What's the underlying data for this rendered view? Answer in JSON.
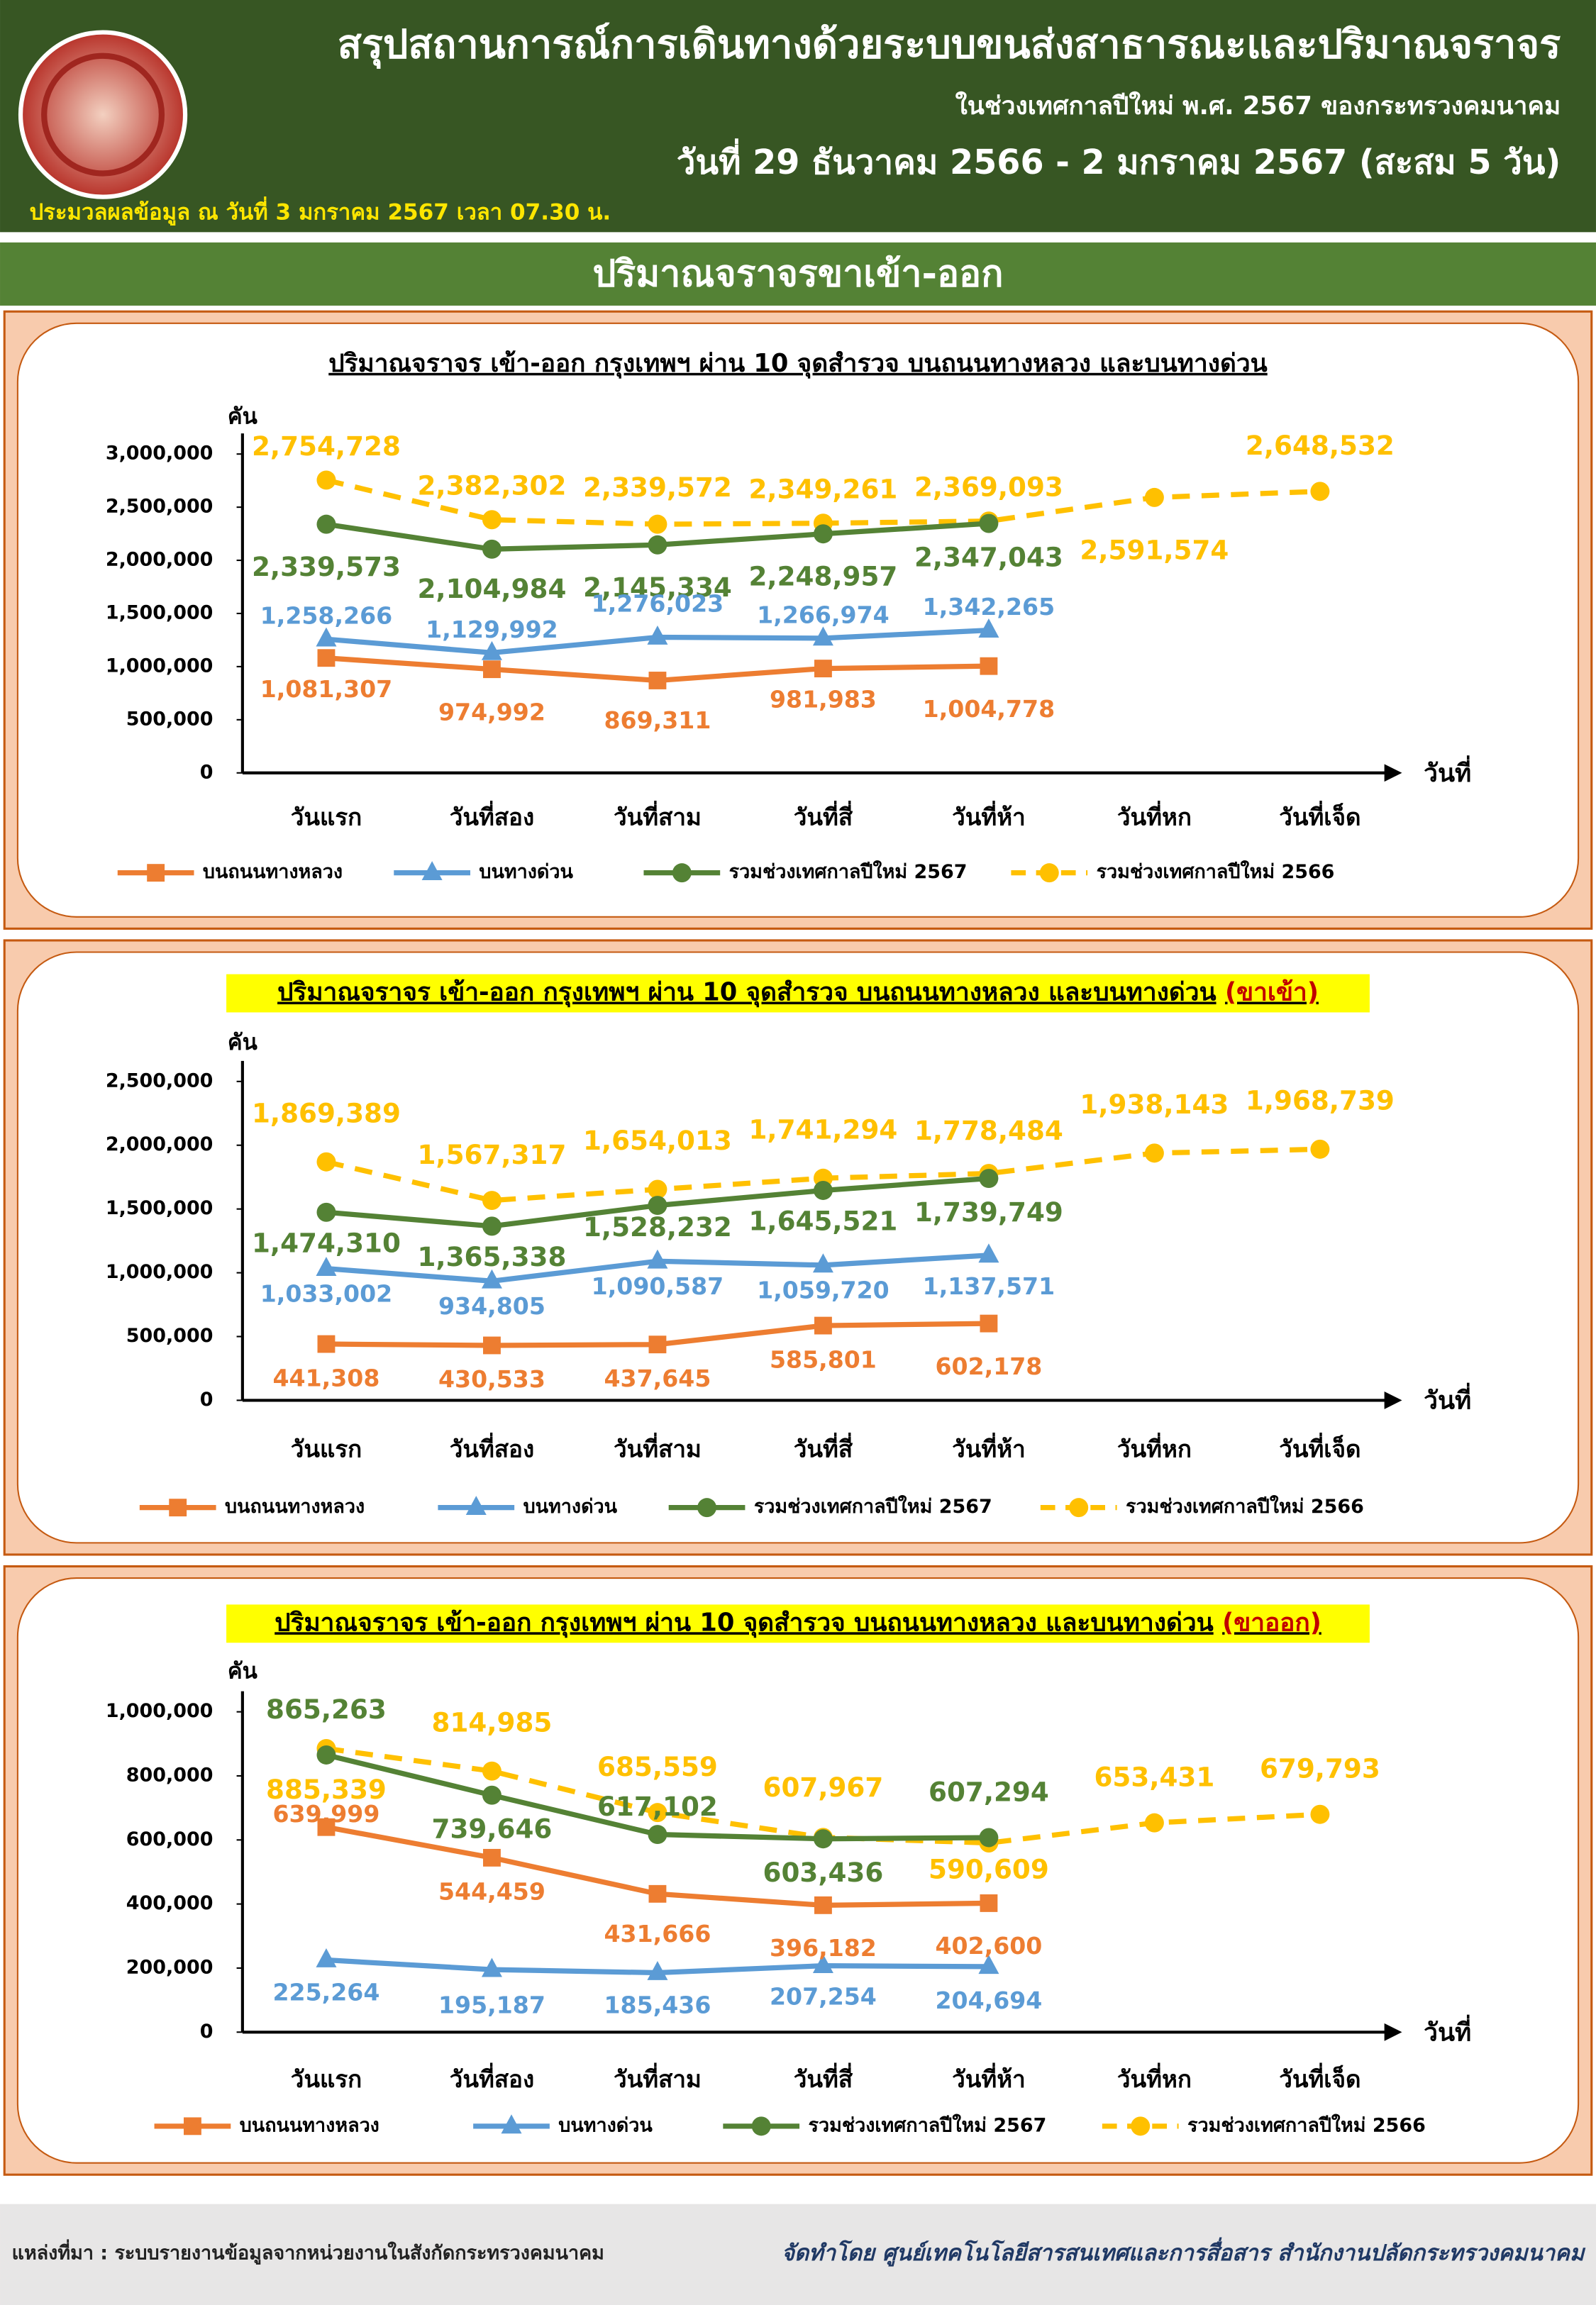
{
  "header": {
    "title": "สรุปสถานการณ์การเดินทางด้วยระบบขนส่งสาธารณะและปริมาณจราจร",
    "subtitle": "ในช่วงเทศกาลปีใหม่ พ.ศ. 2567 ของกระทรวงคมนาคม",
    "date_range": "วันที่ 29 ธันวาคม 2566 - 2 มกราคม 2567 (สะสม 5 วัน)",
    "processed": "ประมวลผลข้อมูล ณ วันที่ 3 มกราคม 2567 เวลา 07.30 น."
  },
  "section_title": "ปริมาณจราจรขาเข้า-ออก",
  "footer": {
    "source": "แหล่งที่มา : ระบบรายงานข้อมูลจากหน่วยงานในสังกัดกระทรวงคมนาคม",
    "credit": "จัดทำโดย ศูนย์เทคโนโลยีสารสนเทศและการสื่อสาร สำนักงานปลัดกระทรวงคมนาคม"
  },
  "chart_data": [
    {
      "type": "line",
      "title": "ปริมาณจราจร เข้า-ออก กรุงเทพฯ ผ่าน 10 จุดสำรวจ บนถนนทางหลวง และบนทางด่วน",
      "y_label": "คัน",
      "x_label": "วันที่",
      "categories": [
        "วันแรก",
        "วันที่สอง",
        "วันที่สาม",
        "วันที่สี่",
        "วันที่ห้า",
        "วันที่หก",
        "วันที่เจ็ด"
      ],
      "ylim": [
        0,
        3000000
      ],
      "yticks": [
        0,
        {
          "value": 500000,
          "label": "500,000"
        },
        {
          "value": 1000000,
          "label": "1,000,000"
        },
        {
          "value": 1500000,
          "label": "1,500,000"
        },
        {
          "value": 2000000,
          "label": "2,000,000"
        },
        {
          "value": 2500000,
          "label": "2,500,000"
        },
        {
          "value": 3000000,
          "label": "3,000,000"
        }
      ],
      "series": [
        {
          "name": "บนถนนทางหลวง",
          "color": "#ED7D31",
          "marker": "square",
          "dashed": false,
          "values": [
            1081307,
            974992,
            869311,
            981983,
            1004778,
            null,
            null
          ],
          "value_labels": [
            "1,081,307",
            "974,992",
            "869,311",
            "981,983",
            "1,004,778",
            null,
            null
          ]
        },
        {
          "name": "บนทางด่วน",
          "color": "#5B9BD5",
          "marker": "triangle",
          "dashed": false,
          "values": [
            1258266,
            1129992,
            1276023,
            1266974,
            1342265,
            null,
            null
          ],
          "value_labels": [
            "1,258,266",
            "1,129,992",
            "1,276,023",
            "1,266,974",
            "1,342,265",
            null,
            null
          ]
        },
        {
          "name": "รวมช่วงเทศกาลปีใหม่ 2567",
          "color": "#548235",
          "marker": "circle",
          "dashed": false,
          "values": [
            2339573,
            2104984,
            2145334,
            2248957,
            2347043,
            null,
            null
          ],
          "value_labels": [
            "2,339,573",
            "2,104,984",
            "2,145,334",
            "2,248,957",
            "2,347,043",
            null,
            null
          ]
        },
        {
          "name": "รวมช่วงเทศกาลปีใหม่ 2566",
          "color": "#FFC000",
          "marker": "circle",
          "dashed": true,
          "values": [
            2754728,
            2382302,
            2339572,
            2349261,
            2369093,
            2591574,
            2648532
          ],
          "value_labels": [
            "2,754,728",
            "2,382,302",
            "2,339,572",
            "2,349,261",
            "2,369,093",
            "2,591,574",
            "2,648,532"
          ]
        }
      ]
    },
    {
      "type": "line",
      "title": "ปริมาณจราจร เข้า-ออก กรุงเทพฯ ผ่าน 10 จุดสำรวจ บนถนนทางหลวง และบนทางด่วน",
      "title_suffix": "(ขาเข้า)",
      "y_label": "คัน",
      "x_label": "วันที่",
      "categories": [
        "วันแรก",
        "วันที่สอง",
        "วันที่สาม",
        "วันที่สี่",
        "วันที่ห้า",
        "วันที่หก",
        "วันที่เจ็ด"
      ],
      "ylim": [
        0,
        2500000
      ],
      "yticks": [
        0,
        {
          "value": 500000,
          "label": "500,000"
        },
        {
          "value": 1000000,
          "label": "1,000,000"
        },
        {
          "value": 1500000,
          "label": "1,500,000"
        },
        {
          "value": 2000000,
          "label": "2,000,000"
        },
        {
          "value": 2500000,
          "label": "2,500,000"
        }
      ],
      "series": [
        {
          "name": "บนถนนทางหลวง",
          "color": "#ED7D31",
          "marker": "square",
          "dashed": false,
          "values": [
            441308,
            430533,
            437645,
            585801,
            602178,
            null,
            null
          ],
          "value_labels": [
            "441,308",
            "430,533",
            "437,645",
            "585,801",
            "602,178",
            null,
            null
          ]
        },
        {
          "name": "บนทางด่วน",
          "color": "#5B9BD5",
          "marker": "triangle",
          "dashed": false,
          "values": [
            1033002,
            934805,
            1090587,
            1059720,
            1137571,
            null,
            null
          ],
          "value_labels": [
            "1,033,002",
            "934,805",
            "1,090,587",
            "1,059,720",
            "1,137,571",
            null,
            null
          ]
        },
        {
          "name": "รวมช่วงเทศกาลปีใหม่ 2567",
          "color": "#548235",
          "marker": "circle",
          "dashed": false,
          "values": [
            1474310,
            1365338,
            1528232,
            1645521,
            1739749,
            null,
            null
          ],
          "value_labels": [
            "1,474,310",
            "1,365,338",
            "1,528,232",
            "1,645,521",
            "1,739,749",
            null,
            null
          ]
        },
        {
          "name": "รวมช่วงเทศกาลปีใหม่ 2566",
          "color": "#FFC000",
          "marker": "circle",
          "dashed": true,
          "values": [
            1869389,
            1567317,
            1654013,
            1741294,
            1778484,
            1938143,
            1968739
          ],
          "value_labels": [
            "1,869,389",
            "1,567,317",
            "1,654,013",
            "1,741,294",
            "1,778,484",
            "1,938,143",
            "1,968,739"
          ]
        }
      ]
    },
    {
      "type": "line",
      "title": "ปริมาณจราจร เข้า-ออก กรุงเทพฯ ผ่าน 10 จุดสำรวจ บนถนนทางหลวง และบนทางด่วน",
      "title_suffix": "(ขาออก)",
      "y_label": "คัน",
      "x_label": "วันที่",
      "categories": [
        "วันแรก",
        "วันที่สอง",
        "วันที่สาม",
        "วันที่สี่",
        "วันที่ห้า",
        "วันที่หก",
        "วันที่เจ็ด"
      ],
      "ylim": [
        0,
        1000000
      ],
      "yticks": [
        0,
        {
          "value": 200000,
          "label": "200,000"
        },
        {
          "value": 400000,
          "label": "400,000"
        },
        {
          "value": 600000,
          "label": "600,000"
        },
        {
          "value": 800000,
          "label": "800,000"
        },
        {
          "value": 1000000,
          "label": "1,000,000"
        }
      ],
      "series": [
        {
          "name": "บนถนนทางหลวง",
          "color": "#ED7D31",
          "marker": "square",
          "dashed": false,
          "values": [
            639999,
            544459,
            431666,
            396182,
            402600,
            null,
            null
          ],
          "value_labels": [
            "639,999",
            "544,459",
            "431,666",
            "396,182",
            "402,600",
            null,
            null
          ]
        },
        {
          "name": "บนทางด่วน",
          "color": "#5B9BD5",
          "marker": "triangle",
          "dashed": false,
          "values": [
            225264,
            195187,
            185436,
            207254,
            204694,
            null,
            null
          ],
          "value_labels": [
            "225,264",
            "195,187",
            "185,436",
            "207,254",
            "204,694",
            null,
            null
          ]
        },
        {
          "name": "รวมช่วงเทศกาลปีใหม่ 2567",
          "color": "#548235",
          "marker": "circle",
          "dashed": false,
          "values": [
            865263,
            739646,
            617102,
            603436,
            607294,
            null,
            null
          ],
          "value_labels": [
            "865,263",
            "739,646",
            "617,102",
            "603,436",
            "607,294",
            null,
            null
          ]
        },
        {
          "name": "รวมช่วงเทศกาลปีใหม่ 2566",
          "color": "#FFC000",
          "marker": "circle",
          "dashed": true,
          "values": [
            885339,
            814985,
            685559,
            607967,
            590609,
            653431,
            679793
          ],
          "value_labels": [
            "885,339",
            "814,985",
            "685,559",
            "607,967",
            "590,609",
            "653,431",
            "679,793"
          ]
        }
      ]
    }
  ]
}
